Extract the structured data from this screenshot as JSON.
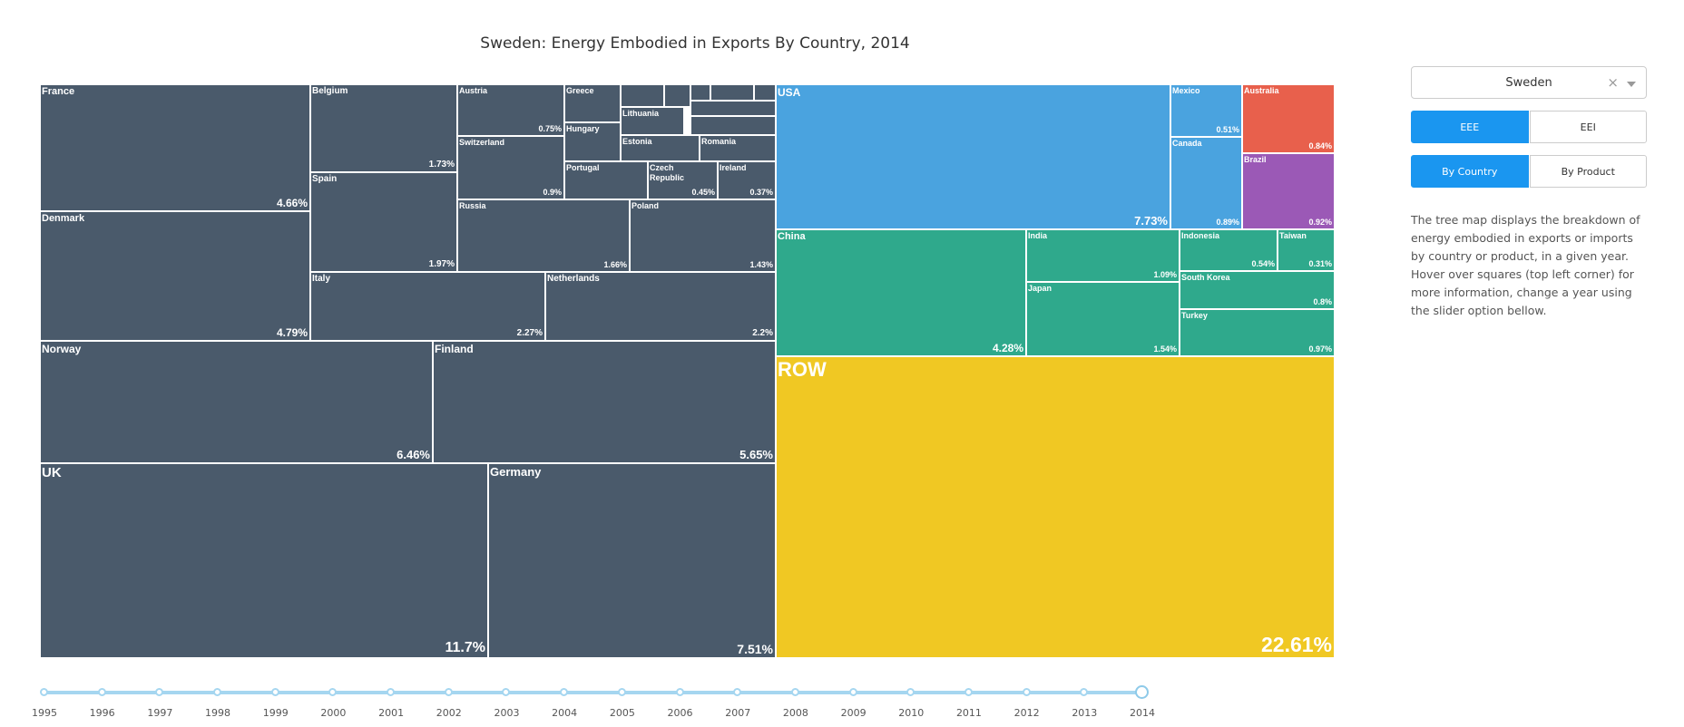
{
  "chart_title": "Sweden: Energy Embodied in Exports By Country, 2014",
  "chart_data": {
    "type": "treemap",
    "title": "Sweden: Energy Embodied in Exports By Country, 2014",
    "unit": "%",
    "groups": [
      {
        "color": "#4a5a6b",
        "items": [
          {
            "name": "UK",
            "value": 11.7,
            "pct": "11.7%"
          },
          {
            "name": "Germany",
            "value": 7.51,
            "pct": "7.51%"
          },
          {
            "name": "Norway",
            "value": 6.46,
            "pct": "6.46%"
          },
          {
            "name": "Finland",
            "value": 5.65,
            "pct": "5.65%"
          },
          {
            "name": "Denmark",
            "value": 4.79,
            "pct": "4.79%"
          },
          {
            "name": "France",
            "value": 4.66,
            "pct": "4.66%"
          },
          {
            "name": "Italy",
            "value": 2.27,
            "pct": "2.27%"
          },
          {
            "name": "Netherlands",
            "value": 2.2,
            "pct": "2.2%"
          },
          {
            "name": "Spain",
            "value": 1.97,
            "pct": "1.97%"
          },
          {
            "name": "Belgium",
            "value": 1.73,
            "pct": "1.73%"
          },
          {
            "name": "Russia",
            "value": 1.66,
            "pct": "1.66%"
          },
          {
            "name": "Poland",
            "value": 1.43,
            "pct": "1.43%"
          },
          {
            "name": "Switzerland",
            "value": 0.9,
            "pct": "0.9%"
          },
          {
            "name": "Austria",
            "value": 0.75,
            "pct": "0.75%"
          },
          {
            "name": "Portugal",
            "value": null,
            "pct": ""
          },
          {
            "name": "Czech Republic",
            "value": 0.45,
            "pct": "0.45%"
          },
          {
            "name": "Ireland",
            "value": 0.37,
            "pct": "0.37%"
          },
          {
            "name": "Greece",
            "value": null,
            "pct": ""
          },
          {
            "name": "Hungary",
            "value": null,
            "pct": ""
          },
          {
            "name": "Lithuania",
            "value": null,
            "pct": ""
          },
          {
            "name": "Estonia",
            "value": null,
            "pct": ""
          },
          {
            "name": "Romania",
            "value": null,
            "pct": ""
          }
        ]
      },
      {
        "color": "#4aa3df",
        "items": [
          {
            "name": "USA",
            "value": 7.73,
            "pct": "7.73%"
          },
          {
            "name": "Mexico",
            "value": 0.51,
            "pct": "0.51%"
          },
          {
            "name": "Canada",
            "value": 0.89,
            "pct": "0.89%"
          }
        ]
      },
      {
        "color": "#e8604c",
        "items": [
          {
            "name": "Australia",
            "value": 0.84,
            "pct": "0.84%"
          }
        ]
      },
      {
        "color": "#9b59b6",
        "items": [
          {
            "name": "Brazil",
            "value": 0.92,
            "pct": "0.92%"
          }
        ]
      },
      {
        "color": "#2fa98c",
        "items": [
          {
            "name": "China",
            "value": 4.28,
            "pct": "4.28%"
          },
          {
            "name": "India",
            "value": 1.09,
            "pct": "1.09%"
          },
          {
            "name": "Japan",
            "value": 1.54,
            "pct": "1.54%"
          },
          {
            "name": "Indonesia",
            "value": 0.54,
            "pct": "0.54%"
          },
          {
            "name": "Taiwan",
            "value": 0.31,
            "pct": "0.31%"
          },
          {
            "name": "South Korea",
            "value": 0.8,
            "pct": "0.8%"
          },
          {
            "name": "Turkey",
            "value": 0.97,
            "pct": "0.97%"
          }
        ]
      },
      {
        "color": "#f0c823",
        "items": [
          {
            "name": "ROW",
            "value": 22.61,
            "pct": "22.61%"
          }
        ]
      }
    ]
  },
  "timeline": {
    "years": [
      "1995",
      "1996",
      "1997",
      "1998",
      "1999",
      "2000",
      "2001",
      "2002",
      "2003",
      "2004",
      "2005",
      "2006",
      "2007",
      "2008",
      "2009",
      "2010",
      "2011",
      "2012",
      "2013",
      "2014"
    ],
    "selected": "2014"
  },
  "controls": {
    "country_select": "Sweden",
    "clear_symbol": "×",
    "metric_buttons": [
      "EEE",
      "EEI"
    ],
    "metric_selected": "EEE",
    "view_buttons": [
      "By Country",
      "By Product"
    ],
    "view_selected": "By Country"
  },
  "description": "The tree map displays the breakdown of energy embodied in exports or imports by country or product, in a given year. Hover over squares (top left corner) for more information, change a year using the slider option bellow."
}
